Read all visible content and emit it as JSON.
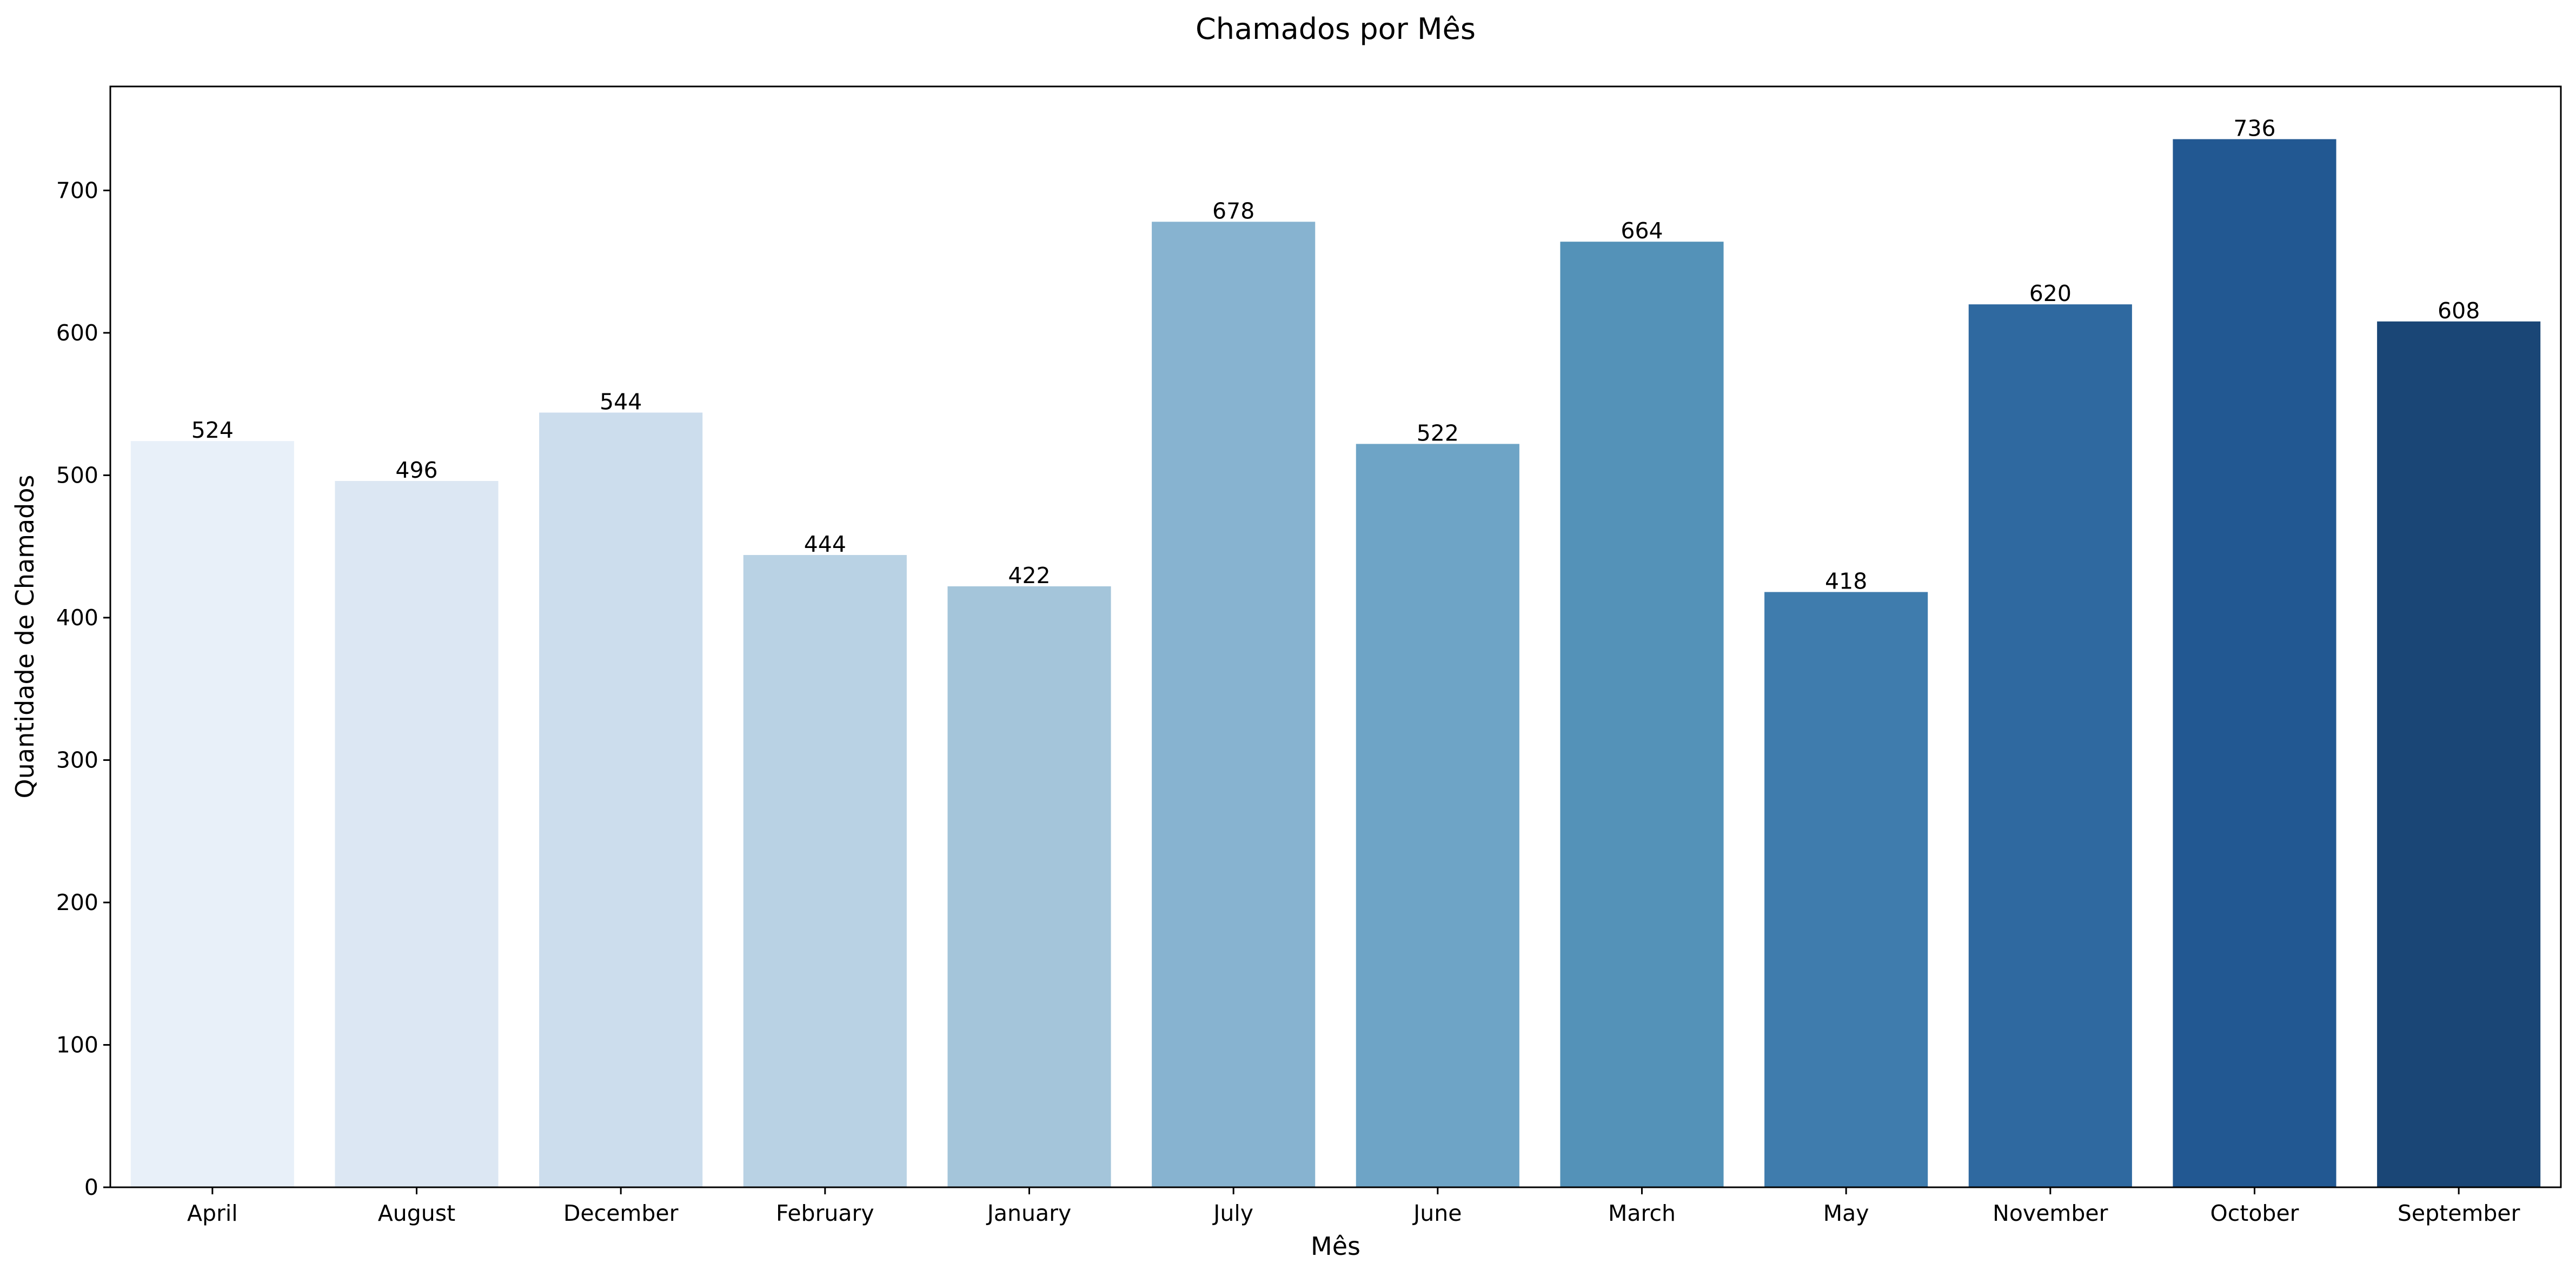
{
  "chart_data": {
    "type": "bar",
    "title": "Chamados por Mês",
    "xlabel": "Mês",
    "ylabel": "Quantidade de Chamados",
    "categories": [
      "April",
      "August",
      "December",
      "February",
      "January",
      "July",
      "June",
      "March",
      "May",
      "November",
      "October",
      "September"
    ],
    "values": [
      524,
      496,
      544,
      444,
      422,
      678,
      522,
      664,
      418,
      620,
      736,
      608
    ],
    "ylim": [
      0,
      773
    ],
    "yticks": [
      0,
      100,
      200,
      300,
      400,
      500,
      600,
      700
    ],
    "grid": false,
    "legend": "none",
    "colors": [
      "#e8f0f9",
      "#dce7f3",
      "#ccdded",
      "#b9d2e4",
      "#a4c5da",
      "#87b3d0",
      "#6ea4c6",
      "#5492b8",
      "#3f7cad",
      "#2f69a0",
      "#225892",
      "#1a4676"
    ]
  }
}
